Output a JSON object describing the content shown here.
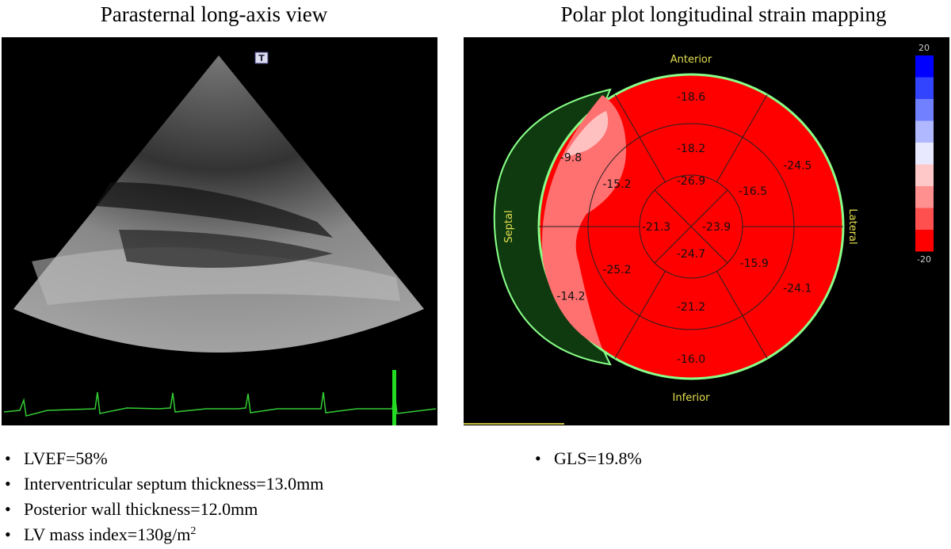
{
  "left_panel": {
    "title": "Parasternal long-axis view",
    "image_label": "T",
    "bullets": [
      {
        "text": "LVEF=58%"
      },
      {
        "text": "Interventricular septum thickness=13.0mm"
      },
      {
        "text": "Posterior wall thickness=12.0mm"
      },
      {
        "text": "LV mass index=130g/m",
        "superscript": "2"
      }
    ]
  },
  "right_panel": {
    "title": "Polar plot longitudinal strain mapping",
    "wall_labels": {
      "anterior": "Anterior",
      "septal": "Septal",
      "lateral": "Lateral",
      "inferior": "Inferior"
    },
    "segments": {
      "basal": [
        "-18.6",
        "-24.5",
        "-24.1",
        "-16.0",
        "-14.2",
        "-9.8"
      ],
      "mid": [
        "-18.2",
        "-16.5",
        "-15.9",
        "-21.2",
        "-25.2",
        "-15.2"
      ],
      "apical": [
        "-26.9",
        "-23.9",
        "-24.7",
        "-21.3"
      ]
    },
    "color_scale": {
      "max": "20",
      "min": "-20"
    },
    "bullets": [
      {
        "text": "GLS=19.8%"
      }
    ]
  }
}
